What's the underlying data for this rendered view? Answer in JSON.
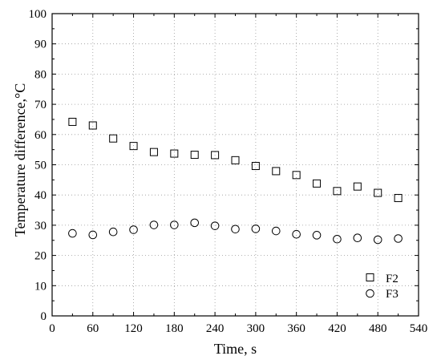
{
  "chart_data": {
    "type": "scatter",
    "title": "",
    "xlabel": "Time, s",
    "ylabel": "Temperature difference,°C",
    "xlim": [
      0,
      540
    ],
    "ylim": [
      0,
      100
    ],
    "xticks": [
      "0",
      "60",
      "120",
      "180",
      "240",
      "300",
      "360",
      "420",
      "480",
      "540"
    ],
    "yticks": [
      "0",
      "10",
      "20",
      "30",
      "40",
      "50",
      "60",
      "70",
      "80",
      "90",
      "100"
    ],
    "grid": "dotted",
    "legend_position": "bottom-right",
    "series": [
      {
        "name": "F2",
        "marker": "square",
        "color": "#000000",
        "x": [
          30,
          60,
          90,
          120,
          150,
          180,
          210,
          240,
          270,
          300,
          330,
          360,
          390,
          420,
          450,
          480,
          510
        ],
        "y": [
          64.2,
          63.0,
          58.7,
          56.2,
          54.2,
          53.7,
          53.3,
          53.2,
          51.5,
          49.6,
          47.9,
          46.6,
          43.8,
          41.3,
          42.8,
          40.7,
          39.0
        ]
      },
      {
        "name": "F3",
        "marker": "circle",
        "color": "#000000",
        "x": [
          30,
          60,
          90,
          120,
          150,
          180,
          210,
          240,
          270,
          300,
          330,
          360,
          390,
          420,
          450,
          480,
          510
        ],
        "y": [
          27.3,
          26.8,
          27.8,
          28.5,
          30.1,
          30.1,
          30.8,
          29.8,
          28.7,
          28.8,
          28.1,
          27.0,
          26.7,
          25.4,
          25.8,
          25.2,
          25.6
        ]
      }
    ]
  }
}
